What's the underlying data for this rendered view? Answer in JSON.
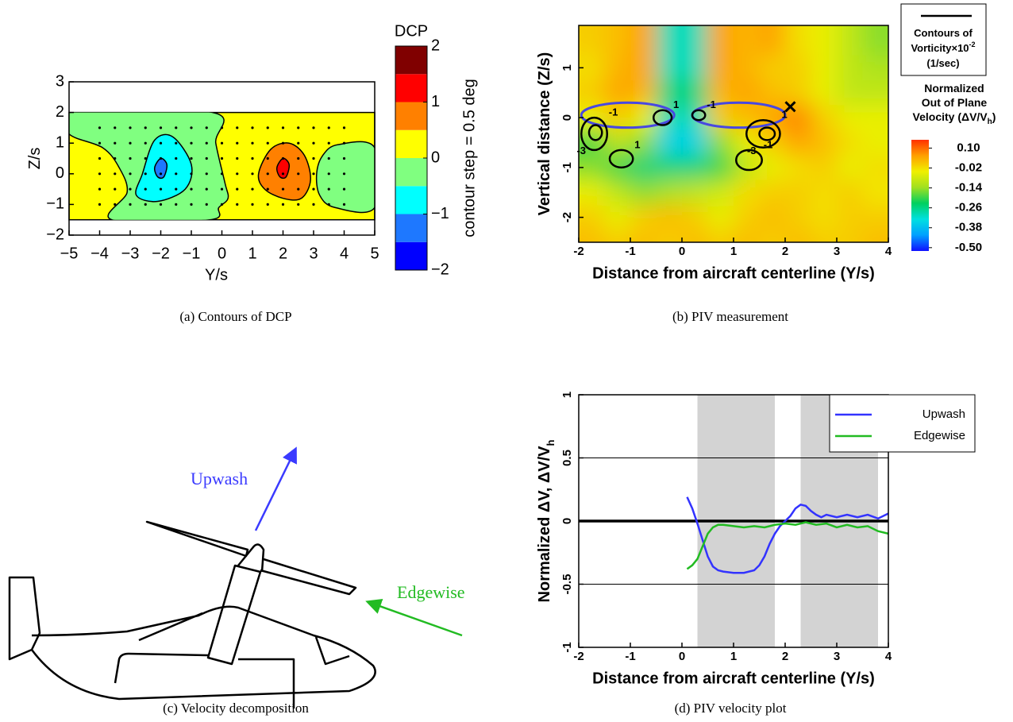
{
  "chart_data": [
    {
      "type": "contour",
      "caption": "(a) Contours of DCP",
      "xlabel": "Y/s",
      "ylabel": "Z/s",
      "xlim": [
        -5,
        5
      ],
      "ylim": [
        -2,
        3
      ],
      "xticks": [
        {
          "value": -5,
          "label": "−5"
        },
        {
          "value": -4,
          "label": "−4"
        },
        {
          "value": -3,
          "label": "−3"
        },
        {
          "value": -2,
          "label": "−2"
        },
        {
          "value": -1,
          "label": "−1"
        },
        0,
        1,
        2,
        3,
        4,
        5
      ],
      "yticks": [
        {
          "value": -2,
          "label": "−2"
        },
        {
          "value": -1,
          "label": "−1"
        },
        0,
        1,
        2,
        3
      ],
      "domain": {
        "x": [
          -5,
          5
        ],
        "y": [
          -1.5,
          2
        ]
      },
      "background_level": 0,
      "regions": [
        {
          "level": -0.5,
          "x": [
            -5,
            -0.3,
            -0.2,
            0.1,
            0.2,
            -0.1,
            -0.4,
            -3.6,
            -3.1,
            -3.36,
            -3.9,
            -5
          ],
          "y": [
            2,
            2,
            1.0,
            -0.3,
            -0.8,
            -1.1,
            -1.5,
            -1.5,
            -0.6,
            0.2,
            0.85,
            1.3
          ]
        },
        {
          "level": -0.5,
          "x": [
            5,
            3.8,
            3.3,
            3.1,
            3.2,
            3.7,
            5
          ],
          "y": [
            0.85,
            0.95,
            0.6,
            0,
            -0.7,
            -1.1,
            -1.1
          ]
        },
        {
          "level": -1,
          "x": [
            -2.6,
            -2.2,
            -1.6,
            -1.0,
            -1.2,
            -2.1,
            -2.8
          ],
          "y": [
            0,
            1.1,
            1.2,
            0.3,
            -0.5,
            -0.9,
            -0.7
          ]
        },
        {
          "level": -1.5,
          "x": [
            -2.2,
            -2,
            -1.8,
            -1.9,
            -2.1
          ],
          "y": [
            0.2,
            0.5,
            0.3,
            -0.1,
            -0.1
          ]
        },
        {
          "level": 0.5,
          "x": [
            1.2,
            1.6,
            2.2,
            2.7,
            2.9,
            2.6,
            2.0,
            1.4
          ],
          "y": [
            0,
            0.8,
            1.0,
            0.6,
            -0.2,
            -0.8,
            -0.8,
            -0.5
          ]
        },
        {
          "level": 1,
          "x": [
            1.8,
            2,
            2.2,
            2.1,
            1.9
          ],
          "y": [
            0.2,
            0.5,
            0.3,
            -0.1,
            -0.1
          ]
        }
      ],
      "probes": {
        "x": [
          -4,
          -3.5,
          -3,
          -2.5,
          -2,
          -1.5,
          -1,
          -0.5,
          0,
          0.5,
          1,
          1.5,
          2,
          2.5,
          3,
          3.5,
          4
        ],
        "y": [
          -1,
          -0.5,
          0,
          0.5,
          1,
          1.5
        ]
      },
      "colorbar": {
        "title": "DCP",
        "label": "contour step = 0.5 deg",
        "lim": [
          -2,
          2
        ],
        "ticks": [
          {
            "value": -2,
            "label": "−2"
          },
          {
            "value": -1,
            "label": "−1"
          },
          0,
          1,
          2
        ],
        "colors": [
          "#0000ff",
          "#1e78ff",
          "#00ffff",
          "#80ff80",
          "#ffff00",
          "#ff8000",
          "#ff0000",
          "#800000"
        ]
      }
    },
    {
      "type": "heatmap",
      "caption": "(b) PIV measurement",
      "xlabel": "Distance from aircraft centerline (Y/s)",
      "ylabel": "Vertical distance (Z/s)",
      "xlim": [
        -2,
        4
      ],
      "ylim": [
        -2.5,
        1.85
      ],
      "xticks": [
        -2,
        -1,
        0,
        1,
        2,
        3,
        4
      ],
      "yticks": [
        -2,
        -1,
        0,
        1
      ],
      "field": {
        "x": [
          -1.75,
          -1.25,
          -0.75,
          -0.25,
          0.25,
          0.75,
          1.25,
          1.75,
          2.25,
          2.75,
          3.25,
          3.75
        ],
        "y": [
          1.5,
          1.0,
          0.5,
          0,
          -0.5,
          -1.0,
          -1.5,
          -2.0,
          -2.5
        ],
        "z": [
          [
            0.0,
            0.02,
            0.05,
            -0.3,
            -0.3,
            0.05,
            0.03,
            0.05,
            -0.02,
            -0.05,
            -0.1,
            -0.15
          ],
          [
            -0.02,
            0.03,
            0.05,
            -0.3,
            -0.3,
            0.05,
            0.03,
            0.0,
            0.0,
            -0.05,
            -0.1,
            -0.12
          ],
          [
            0.0,
            0.05,
            0.03,
            -0.25,
            -0.25,
            0.03,
            0.05,
            0.02,
            0.0,
            -0.05,
            -0.1,
            -0.1
          ],
          [
            -0.05,
            0.0,
            -0.05,
            -0.3,
            -0.3,
            0.0,
            0.02,
            0.05,
            0.08,
            0.0,
            -0.05,
            -0.05
          ],
          [
            -0.2,
            -0.1,
            -0.15,
            -0.35,
            -0.35,
            -0.15,
            -0.05,
            0.0,
            0.05,
            0.02,
            -0.02,
            -0.05
          ],
          [
            -0.15,
            -0.2,
            -0.25,
            -0.25,
            -0.25,
            -0.2,
            -0.1,
            -0.05,
            -0.02,
            0.0,
            -0.05,
            -0.02
          ],
          [
            -0.05,
            -0.1,
            -0.15,
            -0.12,
            -0.1,
            -0.08,
            -0.02,
            0.0,
            0.0,
            -0.02,
            0.0,
            -0.03
          ],
          [
            0.0,
            -0.05,
            0.0,
            0.02,
            0.0,
            -0.05,
            0.0,
            0.02,
            0.0,
            -0.02,
            0.0,
            0.0
          ],
          [
            0.02,
            0.0,
            0.02,
            0.0,
            0.02,
            0.0,
            0.02,
            0.0,
            0.02,
            0.0,
            0.0,
            0.02
          ]
        ]
      },
      "colorbar": {
        "title": [
          "Normalized",
          "Out of Plane",
          "Velocity (ΔV/V"
        ],
        "title_sub": "h",
        "title_end": ")",
        "lim": [
          -0.52,
          0.15
        ],
        "ticks": [
          {
            "value": 0.1,
            "label": "0.10"
          },
          -0.02,
          -0.14,
          -0.26,
          -0.38,
          {
            "value": -0.5,
            "label": "-0.50"
          }
        ],
        "colors": [
          "#1010ff",
          "#00a0ff",
          "#00e0e0",
          "#00d060",
          "#a0e020",
          "#f0f000",
          "#ffa000",
          "#ff3000"
        ]
      },
      "vorticity_legend": {
        "lines": [
          "Contours of",
          "Vorticity×10",
          "(1/sec)"
        ],
        "exponent": "-2"
      },
      "rotors": [
        {
          "x": [
            -1.95,
            -0.15
          ],
          "y": [
            -0.2,
            0.3
          ]
        },
        {
          "x": [
            0.2,
            2.0
          ],
          "y": [
            -0.2,
            0.3
          ]
        }
      ],
      "contours": [
        {
          "level": -1,
          "x": [
            -1.95,
            -1.45
          ],
          "y": [
            -0.65,
            0.0
          ]
        },
        {
          "level": -3,
          "x": [
            -1.8,
            -1.55
          ],
          "y": [
            -0.45,
            -0.15
          ]
        },
        {
          "level": 1,
          "x": [
            -1.4,
            -0.95
          ],
          "y": [
            -1.0,
            -0.65
          ]
        },
        {
          "level": 1,
          "x": [
            -0.55,
            -0.2
          ],
          "y": [
            -0.15,
            0.15
          ]
        },
        {
          "level": -1,
          "x": [
            0.2,
            0.45
          ],
          "y": [
            -0.05,
            0.15
          ]
        },
        {
          "level": 1,
          "x": [
            1.25,
            1.9
          ],
          "y": [
            -0.6,
            -0.05
          ]
        },
        {
          "level": -3,
          "x": [
            1.5,
            1.8
          ],
          "y": [
            -0.45,
            -0.2
          ]
        },
        {
          "level": -1,
          "x": [
            1.05,
            1.55
          ],
          "y": [
            -1.05,
            -0.65
          ]
        }
      ],
      "marker": {
        "x": [
          2.1
        ],
        "y": [
          0.22
        ]
      }
    },
    {
      "type": "line",
      "caption": "(d) PIV velocity plot",
      "xlabel": "Distance from aircraft centerline (Y/s)",
      "ylabel": "Normalized ΔV, ΔV/V",
      "ylabel_sub": "h",
      "xlim": [
        -2,
        4
      ],
      "ylim": [
        -1,
        1
      ],
      "xticks": [
        -2,
        -1,
        0,
        1,
        2,
        3,
        4
      ],
      "yticks": [
        -1,
        -0.5,
        0,
        0.5,
        1
      ],
      "shaded": [
        [
          0.3,
          1.8
        ],
        [
          2.3,
          3.8
        ]
      ],
      "series": [
        {
          "name": "Upwash",
          "color": "#3333ff",
          "x": [
            0.1,
            0.2,
            0.3,
            0.4,
            0.5,
            0.6,
            0.7,
            0.8,
            1.0,
            1.2,
            1.4,
            1.5,
            1.6,
            1.7,
            1.8,
            1.9,
            2.0,
            2.1,
            2.2,
            2.3,
            2.4,
            2.5,
            2.6,
            2.7,
            2.8,
            3.0,
            3.2,
            3.4,
            3.6,
            3.8,
            4.0
          ],
          "values": [
            0.19,
            0.1,
            -0.02,
            -0.15,
            -0.28,
            -0.36,
            -0.39,
            -0.4,
            -0.41,
            -0.41,
            -0.39,
            -0.35,
            -0.28,
            -0.18,
            -0.1,
            -0.04,
            0.0,
            0.04,
            0.1,
            0.13,
            0.12,
            0.08,
            0.05,
            0.03,
            0.05,
            0.03,
            0.05,
            0.03,
            0.05,
            0.02,
            0.06
          ]
        },
        {
          "name": "Edgewise",
          "color": "#22bb22",
          "x": [
            0.1,
            0.2,
            0.3,
            0.4,
            0.5,
            0.6,
            0.7,
            0.8,
            1.0,
            1.2,
            1.4,
            1.6,
            1.8,
            2.0,
            2.2,
            2.4,
            2.6,
            2.8,
            3.0,
            3.2,
            3.4,
            3.6,
            3.8,
            4.0
          ],
          "values": [
            -0.38,
            -0.35,
            -0.3,
            -0.2,
            -0.1,
            -0.05,
            -0.03,
            -0.03,
            -0.04,
            -0.05,
            -0.04,
            -0.05,
            -0.03,
            -0.02,
            -0.03,
            -0.01,
            -0.03,
            -0.02,
            -0.05,
            -0.03,
            -0.05,
            -0.04,
            -0.08,
            -0.1
          ]
        }
      ]
    }
  ],
  "diagram": {
    "caption": "(c) Velocity decomposition",
    "upwash": "Upwash",
    "edgewise": "Edgewise"
  }
}
